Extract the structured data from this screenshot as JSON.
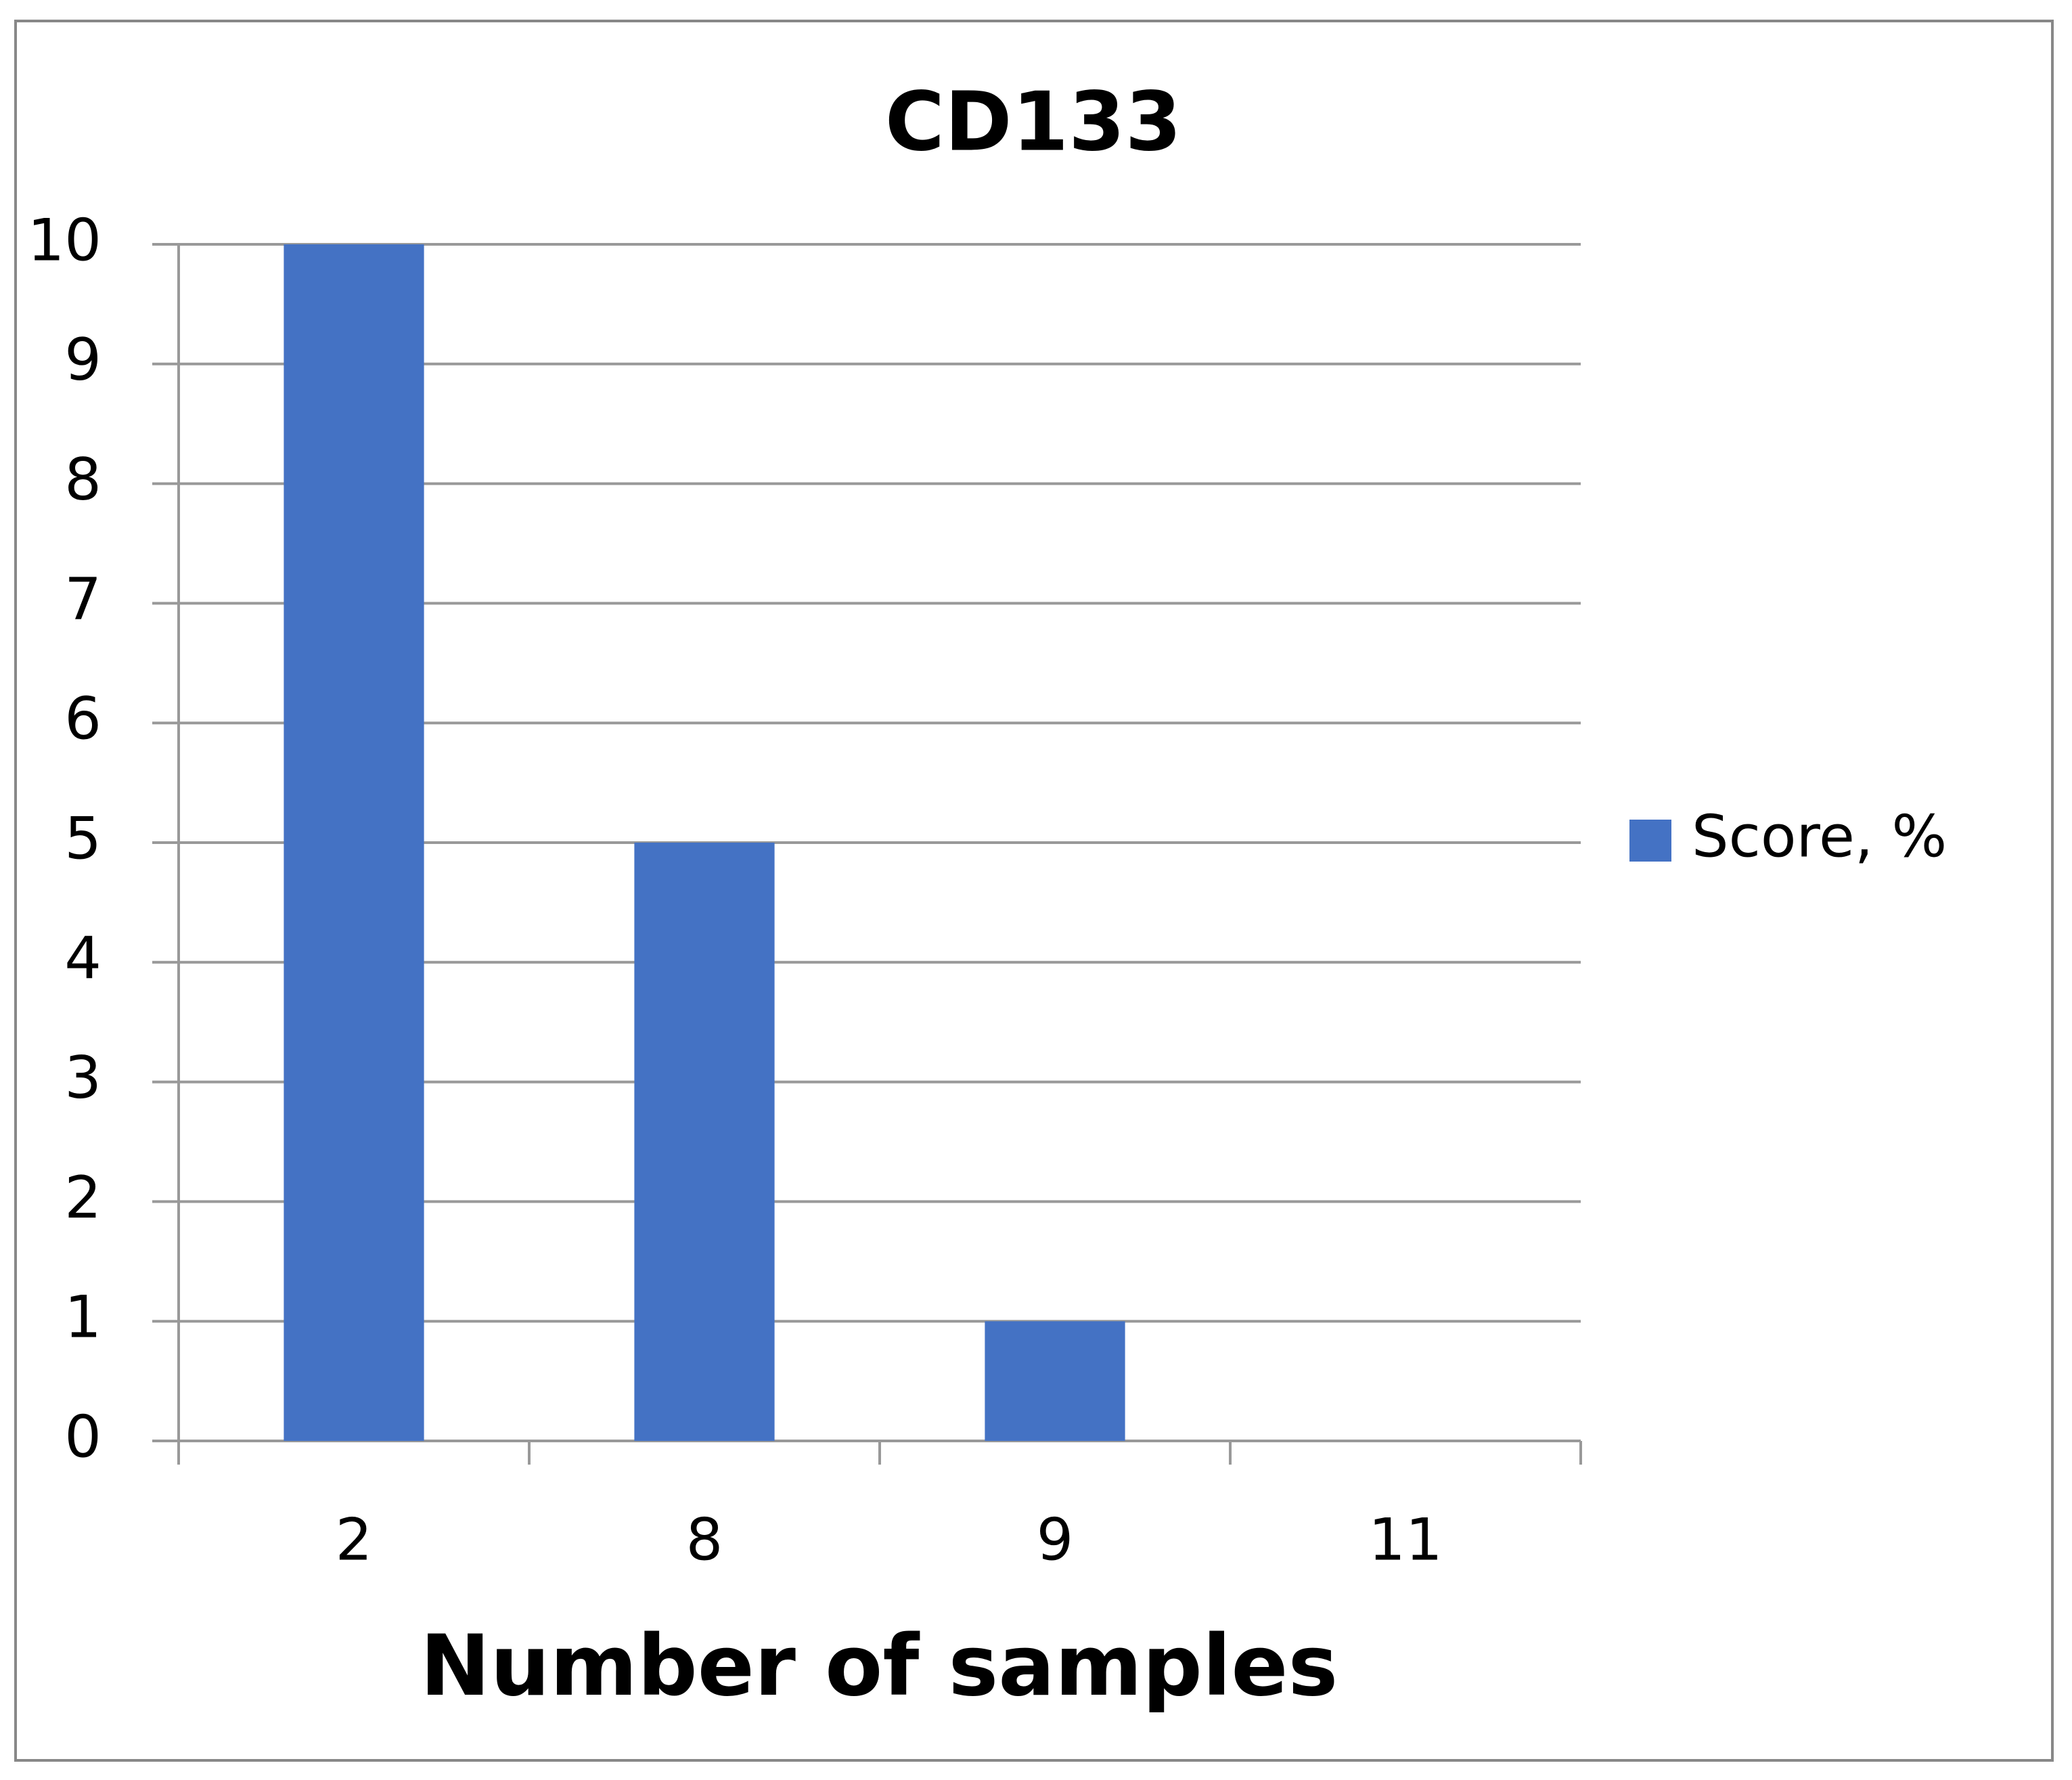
{
  "chart_data": {
    "type": "bar",
    "title": "CD133",
    "x_label": "Number of samples",
    "categories": [
      "2",
      "8",
      "9",
      "11"
    ],
    "series": [
      {
        "name": "Score, %",
        "color": "#4472c4",
        "values": [
          10,
          5,
          1,
          0
        ]
      }
    ],
    "ylim": [
      0,
      10
    ],
    "yticks": [
      0,
      1,
      2,
      3,
      4,
      5,
      6,
      7,
      8,
      9,
      10
    ],
    "grid": true,
    "legend": "right"
  }
}
